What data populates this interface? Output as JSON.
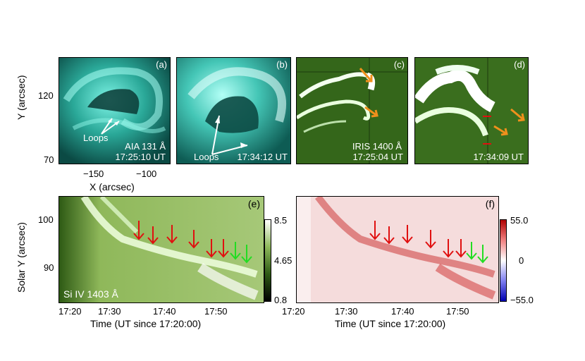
{
  "panels": {
    "a": {
      "tag": "(a)",
      "instrument": "AIA 131 Å",
      "time": "17:25:10 UT",
      "annotation": "Loops"
    },
    "b": {
      "tag": "(b)",
      "time": "17:34:12 UT",
      "annotation": "Loops"
    },
    "c": {
      "tag": "(c)",
      "instrument": "IRIS 1400 Å",
      "time": "17:25:04 UT"
    },
    "d": {
      "tag": "(d)",
      "time": "17:34:09 UT"
    },
    "e": {
      "tag": "(e)",
      "line": "Si IV 1403 Å",
      "colorbar_ticks": [
        "8.5",
        "4.65",
        "0.8"
      ]
    },
    "f": {
      "tag": "(f)",
      "colorbar_ticks": [
        "55.0",
        "0",
        "−55.0"
      ]
    }
  },
  "top_axes": {
    "ylabel": "Y (arcsec)",
    "yticks": [
      "120",
      "70"
    ],
    "xlabel": "X (arcsec)",
    "xticks": [
      "−150",
      "−100"
    ]
  },
  "bottom_axes": {
    "ylabel": "Solar Y (arcsec)",
    "yticks": [
      "100",
      "90"
    ],
    "xticks_e": [
      "17:20",
      "17:30",
      "17:40",
      "17:50"
    ],
    "xticks_f": [
      "17:20",
      "17:30",
      "17:40",
      "17:50"
    ],
    "xlabel_e": "Time (UT since 17:20:00)",
    "xlabel_f": "Time (UT since 17:20:00)"
  },
  "colors": {
    "aia_teal": "#30c8b8",
    "iris_green": "#3d7a1c",
    "red_arrow": "#e01010",
    "green_arrow": "#22dd22",
    "orange_arrow": "#f0901c"
  }
}
